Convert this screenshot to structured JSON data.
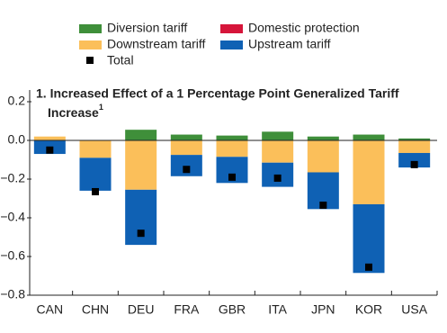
{
  "chart_data": {
    "type": "stacked_bar",
    "title_lines": [
      "1. Increased Effect of a 1 Percentage Point Generalized Tariff",
      "Increase"
    ],
    "title_note": "1",
    "categories": [
      "CAN",
      "CHN",
      "DEU",
      "FRA",
      "GBR",
      "ITA",
      "JPN",
      "KOR",
      "USA"
    ],
    "series": [
      {
        "name": "Diversion tariff",
        "color": "#3f8f3a",
        "values": [
          0,
          0,
          0.055,
          0.03,
          0.025,
          0.045,
          0.02,
          0.03,
          0.01
        ]
      },
      {
        "name": "Domestic protection",
        "color": "#d6153a",
        "values": [
          0,
          0,
          0,
          0,
          0,
          0,
          0,
          0,
          0
        ]
      },
      {
        "name": "Downstream tariff",
        "color": "#fbbf5a",
        "values": [
          0.02,
          -0.09,
          -0.255,
          -0.075,
          -0.085,
          -0.115,
          -0.165,
          -0.33,
          -0.065
        ]
      },
      {
        "name": "Upstream tariff",
        "color": "#0f61b4",
        "values": [
          -0.07,
          -0.17,
          -0.285,
          -0.11,
          -0.135,
          -0.125,
          -0.19,
          -0.355,
          -0.075
        ]
      }
    ],
    "total": {
      "name": "Total",
      "color": "#000000",
      "values": [
        -0.05,
        -0.265,
        -0.48,
        -0.15,
        -0.19,
        -0.195,
        -0.335,
        -0.655,
        -0.125
      ]
    },
    "ylim": [
      -0.8,
      0.2
    ],
    "yticks": [
      0.2,
      {
        "value": 0,
        "label": "0.0"
      },
      {
        "value": -0.2,
        "label": "−0.2"
      },
      {
        "value": -0.4,
        "label": "−0.4"
      },
      {
        "value": -0.6,
        "label": "−0.6"
      },
      {
        "value": -0.8,
        "label": "−0.8"
      }
    ]
  }
}
